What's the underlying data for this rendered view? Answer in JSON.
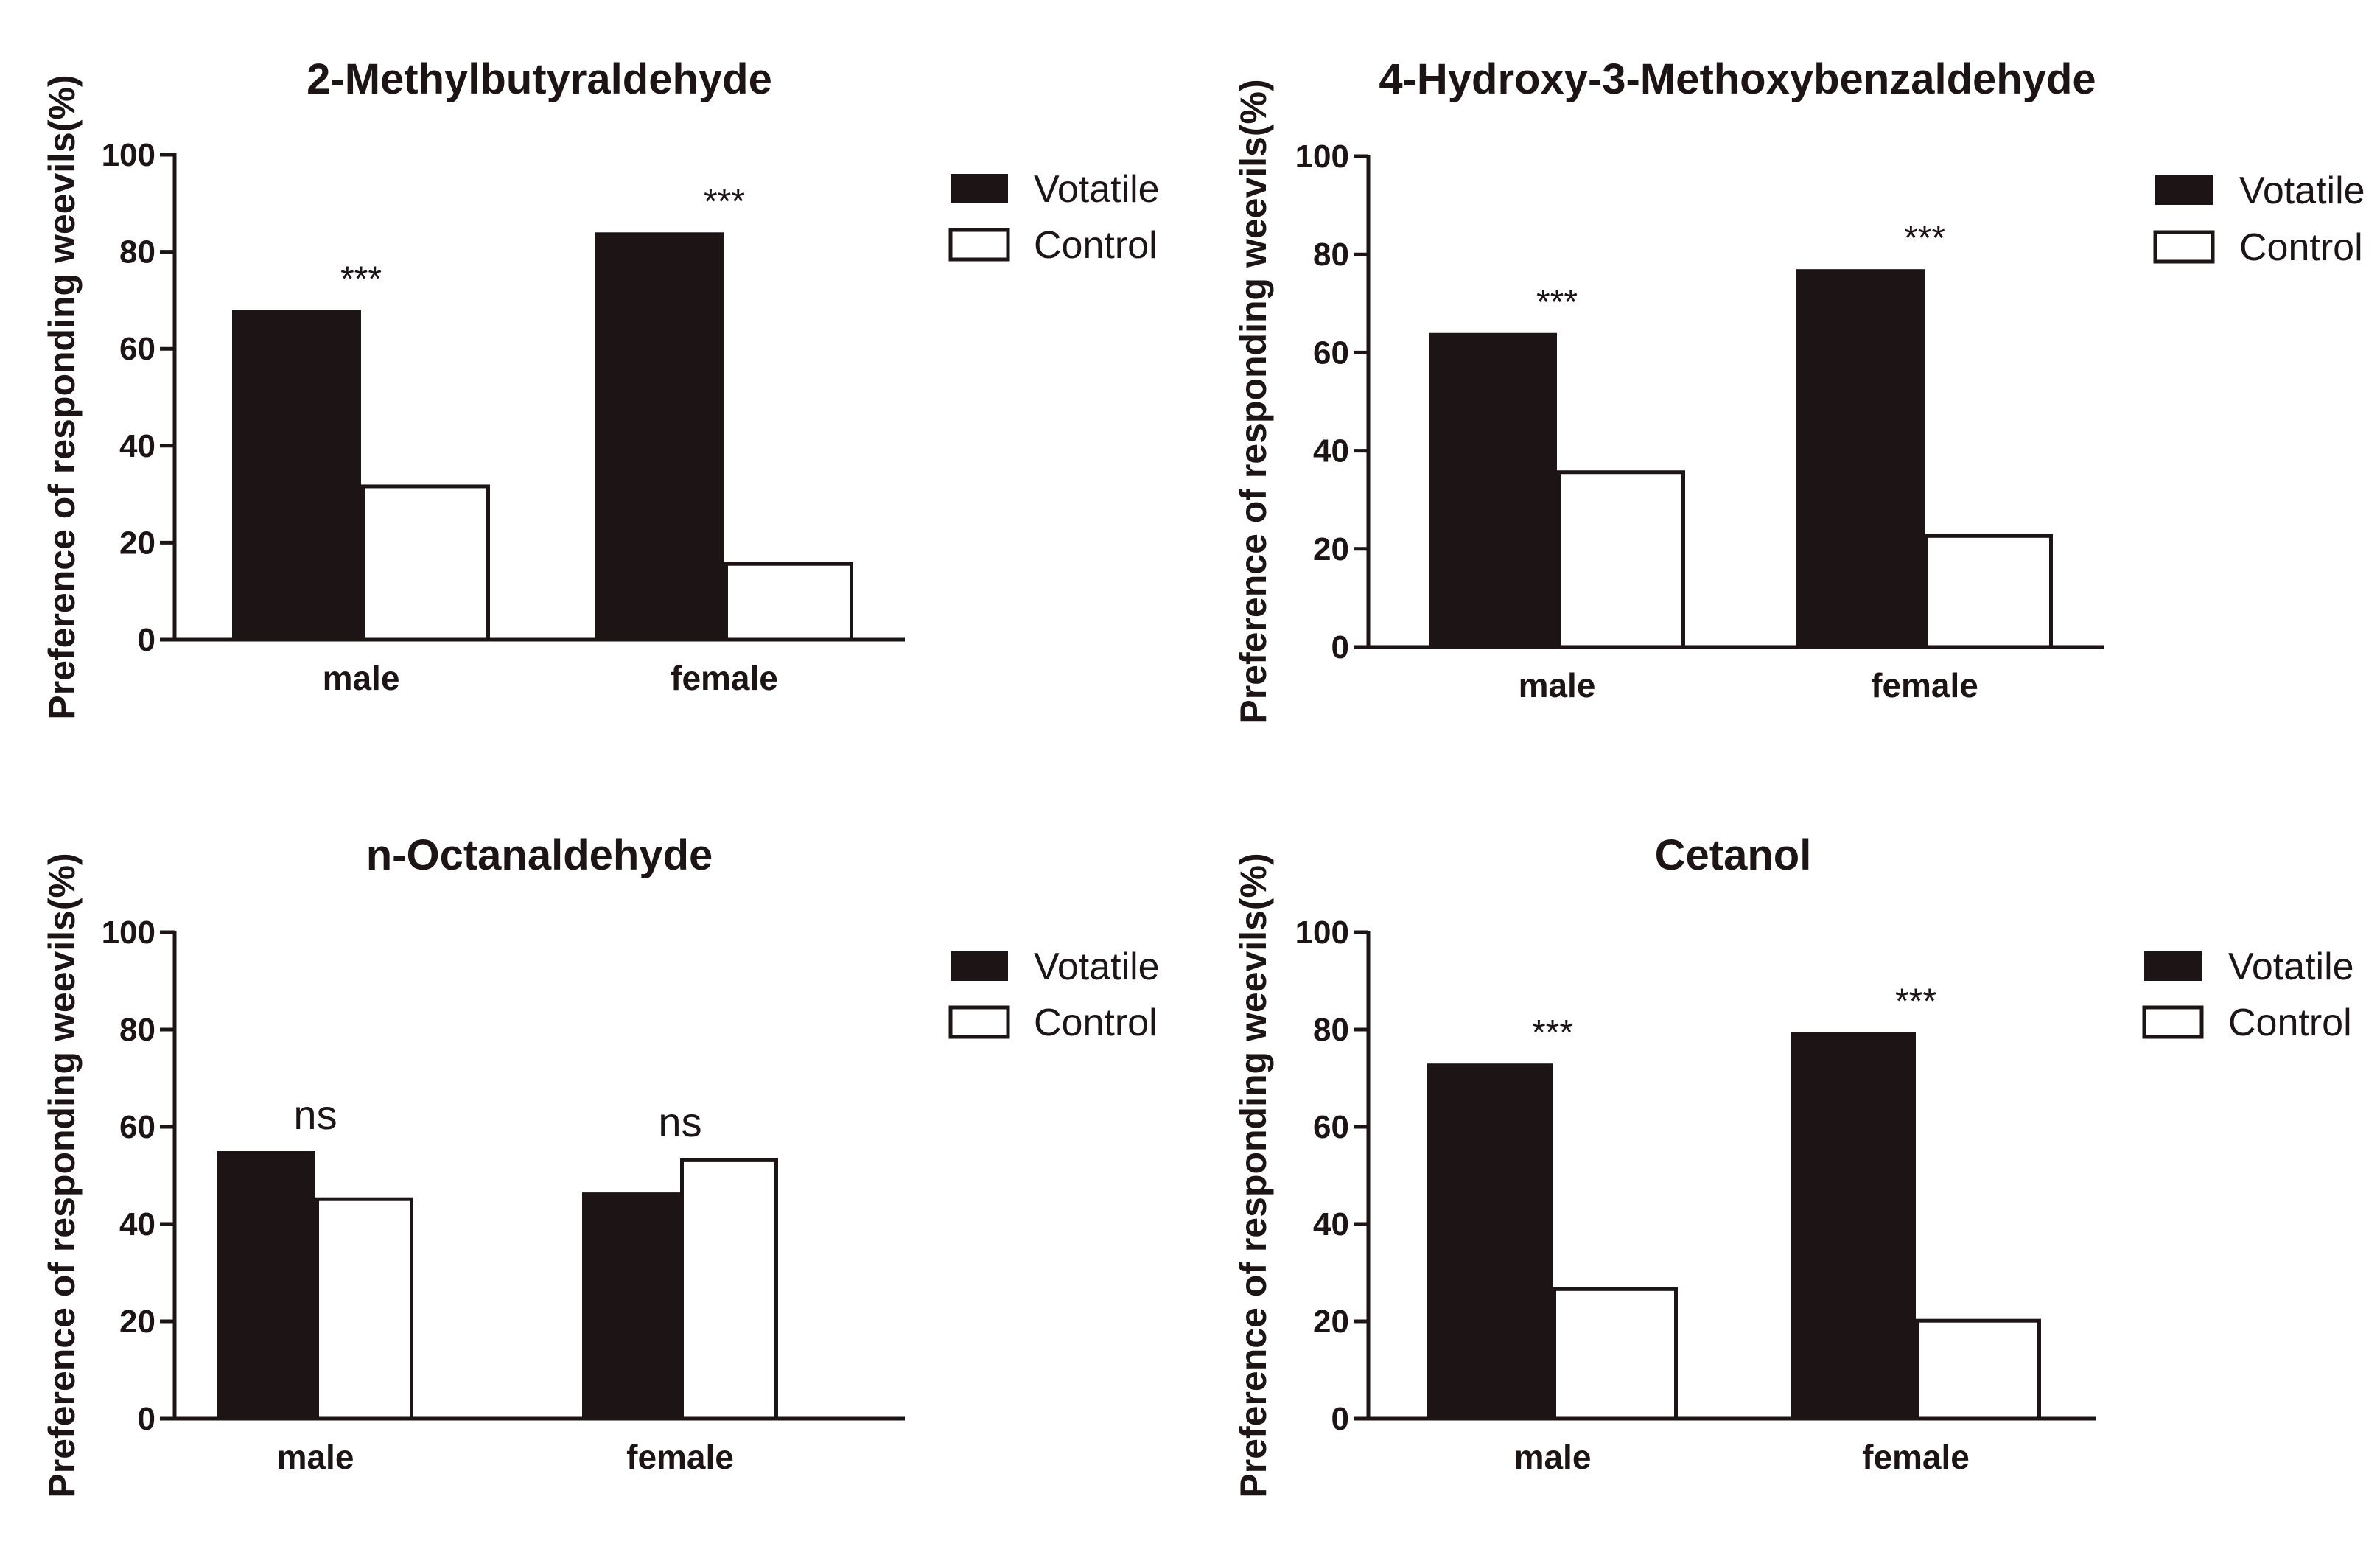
{
  "chart_data": [
    {
      "type": "bar",
      "title": "2-Methylbutyraldehyde",
      "ylabel": "Preference of responding weevils(%)",
      "xlabel": "",
      "ylim": [
        0,
        100
      ],
      "yticks": [
        "0",
        "20",
        "40",
        "60",
        "80",
        "100"
      ],
      "categories": [
        "male",
        "female"
      ],
      "series": [
        {
          "name": "Votatile",
          "values": [
            68,
            84
          ],
          "color": "#1d1416"
        },
        {
          "name": "Control",
          "values": [
            32,
            16
          ],
          "color": "#ffffff"
        }
      ],
      "annotations": [
        "***",
        "***"
      ],
      "legend_position": "right"
    },
    {
      "type": "bar",
      "title": "4-Hydroxy-3-Methoxybenzaldehyde",
      "ylabel": "Preference of responding weevils(%)",
      "xlabel": "",
      "ylim": [
        0,
        100
      ],
      "yticks": [
        "0",
        "20",
        "40",
        "60",
        "80",
        "100"
      ],
      "categories": [
        "male",
        "female"
      ],
      "series": [
        {
          "name": "Votatile",
          "values": [
            64,
            77
          ],
          "color": "#1d1416"
        },
        {
          "name": "Control",
          "values": [
            36,
            23
          ],
          "color": "#ffffff"
        }
      ],
      "annotations": [
        "***",
        "***"
      ],
      "legend_position": "right"
    },
    {
      "type": "bar",
      "title": "n-Octanaldehyde",
      "ylabel": "Preference of responding weevils(%)",
      "xlabel": "",
      "ylim": [
        0,
        100
      ],
      "yticks": [
        "0",
        "20",
        "40",
        "60",
        "80",
        "100"
      ],
      "categories": [
        "male",
        "female"
      ],
      "series": [
        {
          "name": "Votatile",
          "values": [
            55,
            46.5
          ],
          "color": "#1d1416"
        },
        {
          "name": "Control",
          "values": [
            45.5,
            53.5
          ],
          "color": "#ffffff"
        }
      ],
      "annotations": [
        "ns",
        "ns"
      ],
      "legend_position": "right"
    },
    {
      "type": "bar",
      "title": "Cetanol",
      "ylabel": "Preference of responding weevils(%)",
      "xlabel": "",
      "ylim": [
        0,
        100
      ],
      "yticks": [
        "0",
        "20",
        "40",
        "60",
        "80",
        "100"
      ],
      "categories": [
        "male",
        "female"
      ],
      "series": [
        {
          "name": "Votatile",
          "values": [
            73,
            79.5
          ],
          "color": "#1d1416"
        },
        {
          "name": "Control",
          "values": [
            27,
            20.5
          ],
          "color": "#ffffff"
        }
      ],
      "annotations": [
        "***",
        "***"
      ],
      "legend_position": "right"
    }
  ]
}
